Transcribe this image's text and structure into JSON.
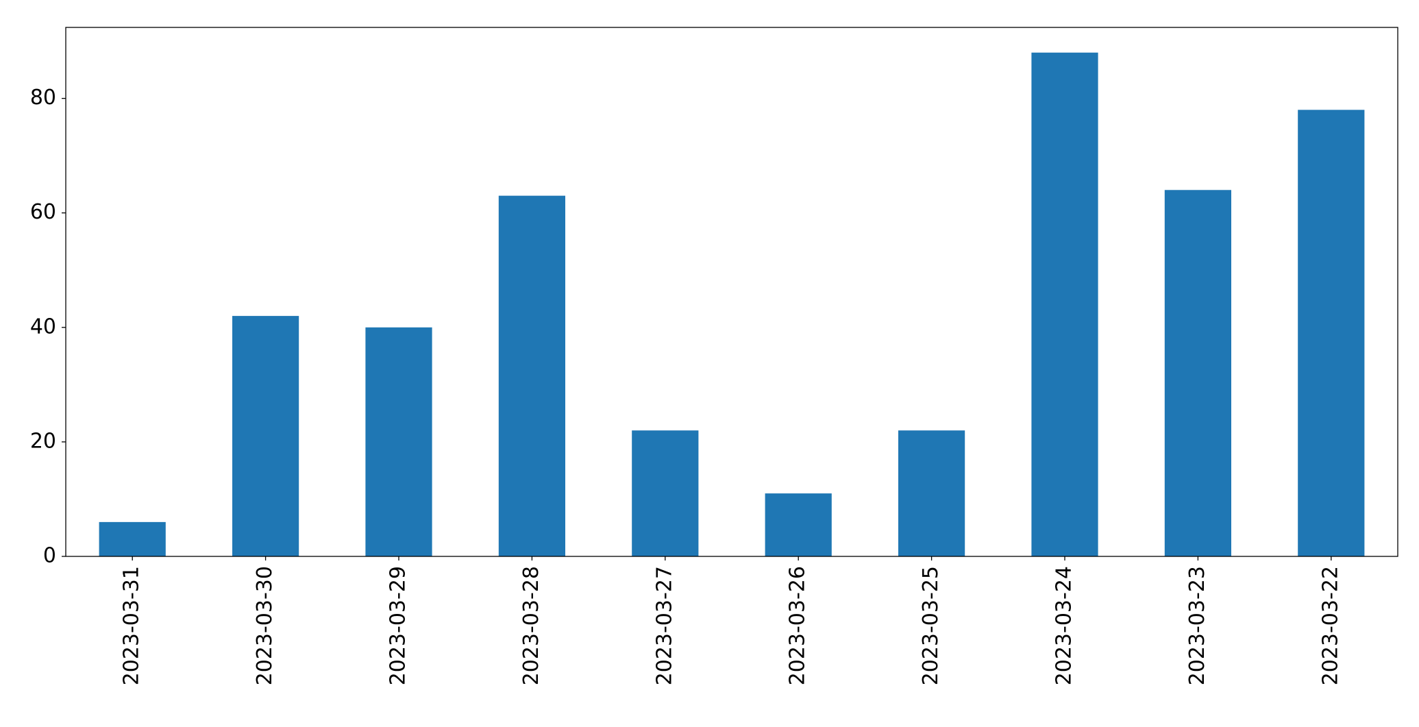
{
  "chart_data": {
    "type": "bar",
    "categories": [
      "2023-03-31",
      "2023-03-30",
      "2023-03-29",
      "2023-03-28",
      "2023-03-27",
      "2023-03-26",
      "2023-03-25",
      "2023-03-24",
      "2023-03-23",
      "2023-03-22"
    ],
    "values": [
      6,
      42,
      40,
      63,
      22,
      11,
      22,
      88,
      64,
      78
    ],
    "color": "#1f77b4",
    "ylim": [
      0,
      92.4
    ],
    "yticks": [
      0,
      20,
      40,
      60,
      80
    ],
    "grid": false
  }
}
